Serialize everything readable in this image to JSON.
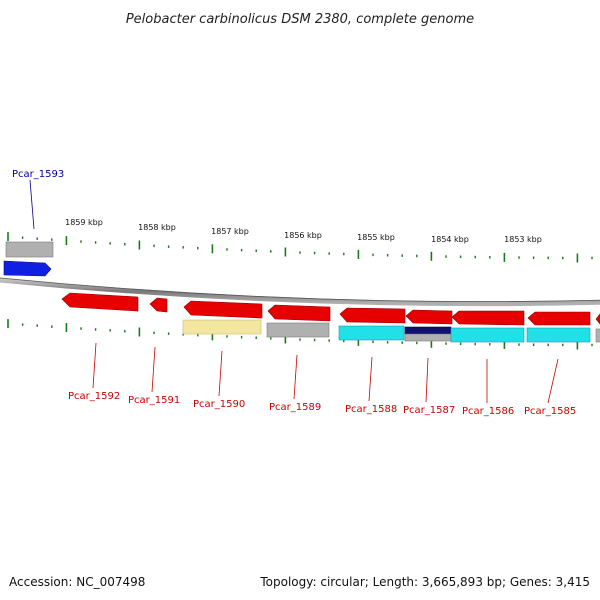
{
  "title": "Pelobacter carbinolicus DSM 2380, complete genome",
  "footer": {
    "accession": "Accession: NC_007498",
    "summary": "Topology: circular; Length: 3,665,893 bp; Genes: 3,415"
  },
  "colors": {
    "forward_gene": "#e60000",
    "reverse_gene": "#e60000",
    "highlight_gene": "#1020e0",
    "tick": "#1a7a1a",
    "backbone": "#808080",
    "cog_gray": "#b0b0b0",
    "cog_yellow": "#f2e6a0",
    "cog_cyan": "#22e0e8",
    "cog_navy": "#101070"
  },
  "scale_labels": [
    "1859 kbp",
    "1858 kbp",
    "1857 kbp",
    "1856 kbp",
    "1855 kbp",
    "1854 kbp",
    "1853 kbp"
  ],
  "genes": [
    {
      "id": "Pcar_1593",
      "strand": "+",
      "cog": "gray",
      "highlight": true
    },
    {
      "id": "Pcar_1592",
      "strand": "-",
      "cog": "none"
    },
    {
      "id": "Pcar_1591",
      "strand": "-",
      "cog": "none"
    },
    {
      "id": "Pcar_1590",
      "strand": "-",
      "cog": "yellow"
    },
    {
      "id": "Pcar_1589",
      "strand": "-",
      "cog": "gray"
    },
    {
      "id": "Pcar_1588",
      "strand": "-",
      "cog": "cyan"
    },
    {
      "id": "Pcar_1587",
      "strand": "-",
      "cog": "navy"
    },
    {
      "id": "Pcar_1586",
      "strand": "-",
      "cog": "cyan"
    },
    {
      "id": "Pcar_1585",
      "strand": "-",
      "cog": "cyan"
    }
  ]
}
